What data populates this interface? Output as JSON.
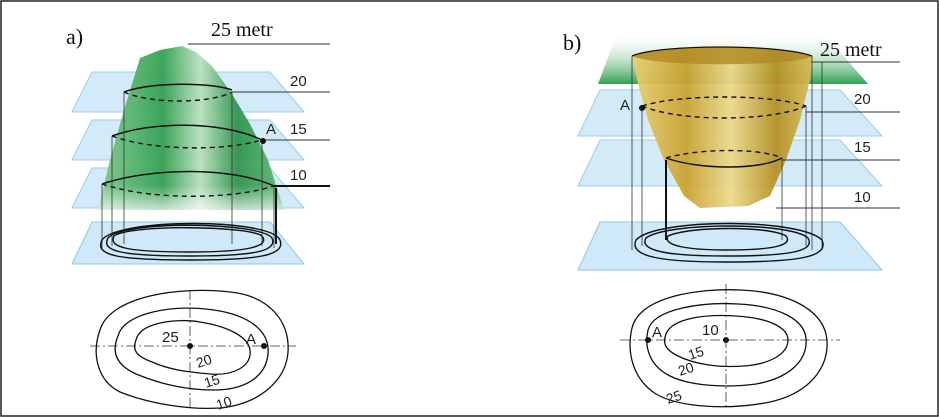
{
  "panels": {
    "a": {
      "label": "a)",
      "unit_label": "25 metr",
      "levels": [
        "20",
        "15",
        "10"
      ],
      "point": "A",
      "plan_center_value": "25",
      "plan_contours": [
        "20",
        "15",
        "10"
      ],
      "plan_point": "A"
    },
    "b": {
      "label": "b)",
      "unit_label": "25 metr",
      "levels": [
        "20",
        "15",
        "10"
      ],
      "point": "A",
      "plan_center_value": "10",
      "plan_contours": [
        "15",
        "20",
        "25"
      ],
      "plan_point": "A"
    }
  },
  "colors": {
    "plane_fill": "#cfe9f8",
    "plane_stroke": "#8cc8ea",
    "hill_green": "#2fa04f",
    "pit_gold": "#c9a436",
    "frame": "#222222"
  }
}
